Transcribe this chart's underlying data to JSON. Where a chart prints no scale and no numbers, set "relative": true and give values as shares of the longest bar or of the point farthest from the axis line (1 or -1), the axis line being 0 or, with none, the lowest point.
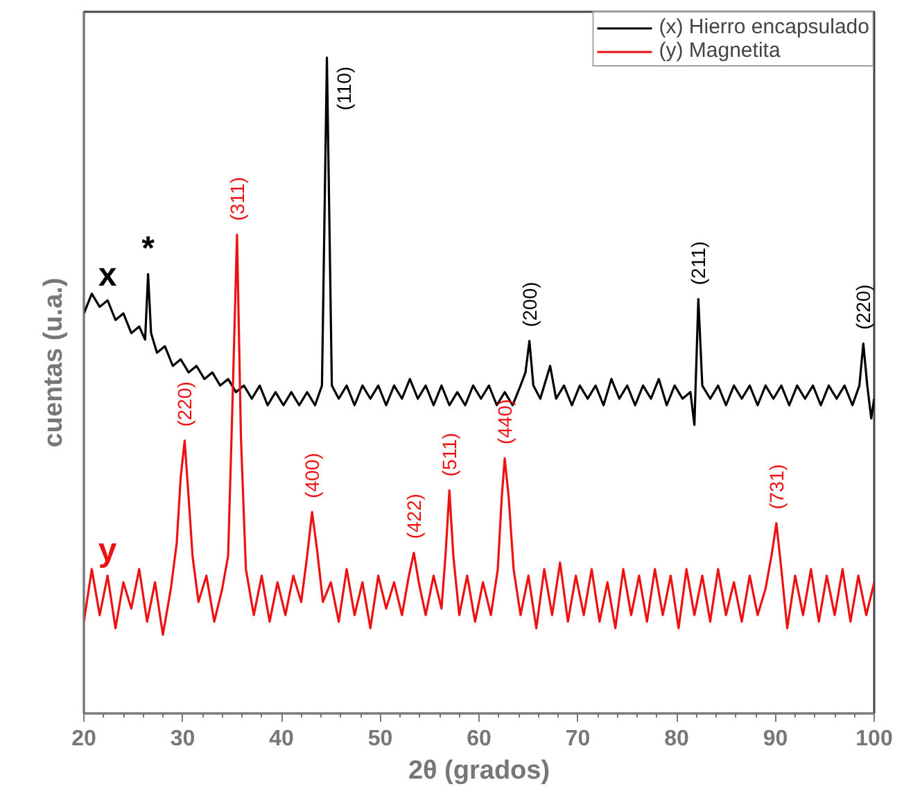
{
  "chart_data": {
    "type": "line",
    "relative": true,
    "xlabel": "2θ (grados)",
    "ylabel": "cuentas (u.a.)",
    "xlim": [
      20,
      100
    ],
    "xticks": [
      20,
      30,
      40,
      50,
      60,
      70,
      80,
      90,
      100
    ],
    "legend": "top right",
    "grid": false,
    "marker": "none",
    "line_style": "solid",
    "series": [
      {
        "name": "(x) Hierro encapsulado",
        "color": "#000000",
        "x": [
          20,
          20.8,
          21.6,
          22.4,
          23.2,
          24,
          24.8,
          25.6,
          26.2,
          26.5,
          26.8,
          27.4,
          28.2,
          29,
          29.8,
          30.6,
          31.4,
          32.2,
          33,
          33.8,
          34.6,
          35.4,
          36.2,
          37,
          37.8,
          38.6,
          39.4,
          40.2,
          41,
          41.8,
          42.6,
          43.4,
          44.1,
          44.6,
          45.1,
          45.8,
          46.6,
          47.4,
          48.2,
          49,
          49.8,
          50.6,
          51.4,
          52.2,
          53,
          53.8,
          54.6,
          55.4,
          56.2,
          57,
          57.8,
          58.6,
          59.4,
          60.2,
          61,
          61.8,
          62.6,
          63.4,
          64.2,
          64.7,
          65.1,
          65.5,
          66.2,
          67.2,
          67.8,
          68.6,
          69.4,
          70.2,
          71,
          71.8,
          72.6,
          73.4,
          74.2,
          75,
          75.8,
          76.6,
          77.4,
          78.2,
          79,
          79.8,
          80.6,
          81.4,
          81.8,
          82.2,
          82.6,
          83.4,
          84.2,
          85,
          85.8,
          86.6,
          87.4,
          88.2,
          89,
          89.8,
          90.6,
          91.4,
          92.2,
          93,
          93.8,
          94.6,
          95.4,
          96.2,
          97,
          97.8,
          98.5,
          98.9,
          99.3,
          99.7,
          100
        ],
        "values": [
          0.61,
          0.64,
          0.62,
          0.63,
          0.6,
          0.61,
          0.58,
          0.59,
          0.57,
          0.67,
          0.58,
          0.55,
          0.56,
          0.53,
          0.54,
          0.52,
          0.53,
          0.51,
          0.52,
          0.5,
          0.51,
          0.49,
          0.5,
          0.48,
          0.5,
          0.47,
          0.49,
          0.47,
          0.49,
          0.47,
          0.49,
          0.47,
          0.5,
          1.0,
          0.5,
          0.48,
          0.5,
          0.47,
          0.5,
          0.48,
          0.5,
          0.47,
          0.5,
          0.48,
          0.51,
          0.48,
          0.5,
          0.47,
          0.5,
          0.47,
          0.49,
          0.47,
          0.5,
          0.48,
          0.5,
          0.47,
          0.49,
          0.47,
          0.5,
          0.52,
          0.568,
          0.5,
          0.48,
          0.53,
          0.48,
          0.5,
          0.47,
          0.5,
          0.48,
          0.5,
          0.47,
          0.51,
          0.48,
          0.5,
          0.47,
          0.5,
          0.48,
          0.51,
          0.47,
          0.5,
          0.48,
          0.49,
          0.44,
          0.632,
          0.5,
          0.48,
          0.5,
          0.47,
          0.5,
          0.48,
          0.5,
          0.47,
          0.5,
          0.48,
          0.5,
          0.47,
          0.5,
          0.48,
          0.5,
          0.47,
          0.5,
          0.48,
          0.5,
          0.47,
          0.5,
          0.564,
          0.5,
          0.45,
          0.48
        ]
      },
      {
        "name": "(y) Magnetita",
        "color": "#ee1111",
        "x": [
          20,
          20.8,
          21.6,
          22.4,
          23.2,
          24,
          24.8,
          25.6,
          26.4,
          27.2,
          28,
          28.8,
          29.4,
          29.8,
          30.2,
          30.6,
          31,
          31.6,
          32.4,
          33.2,
          34,
          34.6,
          35,
          35.5,
          35.9,
          36.4,
          37.2,
          38,
          38.8,
          39.6,
          40.4,
          41.2,
          42,
          42.6,
          43.1,
          43.6,
          44.2,
          45,
          45.8,
          46.6,
          47.4,
          48.2,
          49,
          49.8,
          50.6,
          51.4,
          52.2,
          52.9,
          53.4,
          53.9,
          54.6,
          55.4,
          56.2,
          56.6,
          57,
          57.4,
          58,
          58.8,
          59.6,
          60.4,
          61.2,
          61.9,
          62.3,
          62.6,
          63,
          63.5,
          64.2,
          65,
          65.8,
          66.6,
          67.4,
          68.2,
          69,
          69.8,
          70.6,
          71.4,
          72.2,
          73,
          73.8,
          74.6,
          75.4,
          76.2,
          77,
          77.8,
          78.6,
          79.4,
          80.2,
          81,
          81.8,
          82.6,
          83.4,
          84.2,
          85,
          85.8,
          86.6,
          87.4,
          88.2,
          89,
          89.6,
          90.1,
          90.6,
          91.2,
          92,
          92.8,
          93.6,
          94.4,
          95.2,
          96,
          96.8,
          97.6,
          98.4,
          99.2,
          100
        ],
        "values": [
          0.14,
          0.22,
          0.15,
          0.21,
          0.13,
          0.2,
          0.16,
          0.22,
          0.14,
          0.2,
          0.12,
          0.19,
          0.26,
          0.36,
          0.416,
          0.33,
          0.24,
          0.17,
          0.21,
          0.14,
          0.19,
          0.24,
          0.45,
          0.73,
          0.42,
          0.22,
          0.15,
          0.21,
          0.14,
          0.2,
          0.15,
          0.21,
          0.17,
          0.24,
          0.307,
          0.25,
          0.17,
          0.2,
          0.14,
          0.22,
          0.15,
          0.2,
          0.13,
          0.21,
          0.16,
          0.2,
          0.15,
          0.21,
          0.245,
          0.2,
          0.15,
          0.21,
          0.16,
          0.24,
          0.34,
          0.24,
          0.15,
          0.21,
          0.14,
          0.2,
          0.15,
          0.22,
          0.33,
          0.389,
          0.33,
          0.22,
          0.15,
          0.21,
          0.13,
          0.22,
          0.15,
          0.23,
          0.14,
          0.21,
          0.15,
          0.22,
          0.14,
          0.2,
          0.13,
          0.22,
          0.15,
          0.21,
          0.14,
          0.22,
          0.15,
          0.21,
          0.13,
          0.22,
          0.15,
          0.21,
          0.14,
          0.22,
          0.15,
          0.2,
          0.14,
          0.21,
          0.15,
          0.19,
          0.24,
          0.29,
          0.22,
          0.13,
          0.21,
          0.15,
          0.22,
          0.14,
          0.21,
          0.15,
          0.22,
          0.14,
          0.21,
          0.15,
          0.2
        ]
      }
    ],
    "annotations": [
      {
        "text": "x",
        "x": 22.4,
        "y": 0.63
      },
      {
        "text": "*",
        "x": 26.5,
        "y": 0.67
      },
      {
        "text": "y",
        "x": 22.4,
        "y": 0.21
      },
      {
        "text": "(110)",
        "x": 44.6,
        "y": 1.0
      },
      {
        "text": "(200)",
        "x": 65.1,
        "y": 0.568
      },
      {
        "text": "(211)",
        "x": 82.2,
        "y": 0.632
      },
      {
        "text": "(220)",
        "x": 98.9,
        "y": 0.564
      },
      {
        "text": "(220)",
        "x": 30.2,
        "y": 0.416
      },
      {
        "text": "(311)",
        "x": 35.5,
        "y": 0.73
      },
      {
        "text": "(400)",
        "x": 43.1,
        "y": 0.307
      },
      {
        "text": "(422)",
        "x": 53.4,
        "y": 0.245
      },
      {
        "text": "(511)",
        "x": 57.0,
        "y": 0.34
      },
      {
        "text": "(440)",
        "x": 62.6,
        "y": 0.389
      },
      {
        "text": "(731)",
        "x": 90.1,
        "y": 0.29
      }
    ]
  }
}
